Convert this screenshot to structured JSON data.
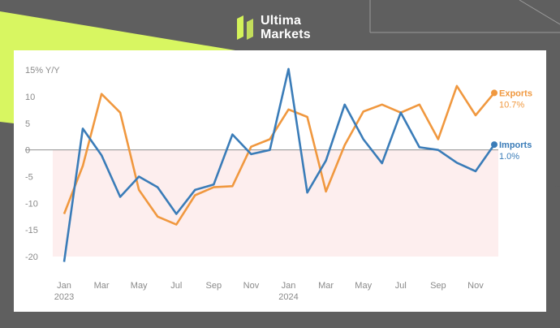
{
  "brand": {
    "line1": "Ultima",
    "line2": "Markets",
    "logo_icon": "ultima-markets-logo-icon",
    "accent": "#d4f35a"
  },
  "chart_data": {
    "type": "line",
    "ylabel": "15% Y/Y",
    "y_ticks": [
      "10",
      "5",
      "0",
      "-5",
      "-10",
      "-15",
      "-20"
    ],
    "ylim": [
      -20,
      15
    ],
    "x_tick_labels": [
      {
        "label": "Jan",
        "sub": "2023"
      },
      {
        "label": "Mar",
        "sub": ""
      },
      {
        "label": "May",
        "sub": ""
      },
      {
        "label": "Jul",
        "sub": ""
      },
      {
        "label": "Sep",
        "sub": ""
      },
      {
        "label": "Nov",
        "sub": ""
      },
      {
        "label": "Jan",
        "sub": "2024"
      },
      {
        "label": "Mar",
        "sub": ""
      },
      {
        "label": "May",
        "sub": ""
      },
      {
        "label": "Jul",
        "sub": ""
      },
      {
        "label": "Sep",
        "sub": ""
      },
      {
        "label": "Nov",
        "sub": ""
      }
    ],
    "x": [
      "2023-01",
      "2023-02",
      "2023-03",
      "2023-04",
      "2023-05",
      "2023-06",
      "2023-07",
      "2023-08",
      "2023-09",
      "2023-10",
      "2023-11",
      "2023-12",
      "2024-01",
      "2024-02",
      "2024-03",
      "2024-04",
      "2024-05",
      "2024-06",
      "2024-07",
      "2024-08",
      "2024-09",
      "2024-10",
      "2024-11",
      "2024-12"
    ],
    "series": [
      {
        "name": "Exports",
        "last_label": "10.7%",
        "color": "#f0983f",
        "values": [
          -12.0,
          -3.0,
          10.5,
          7.0,
          -7.5,
          -12.5,
          -14.0,
          -8.5,
          -7.0,
          -6.8,
          0.6,
          2.0,
          7.6,
          6.2,
          -7.8,
          0.9,
          7.2,
          8.5,
          7.0,
          8.5,
          2.0,
          12.0,
          6.5,
          10.7
        ]
      },
      {
        "name": "Imports",
        "last_label": "1.0%",
        "color": "#3a7cb8",
        "values": [
          -21.0,
          4.0,
          -1.0,
          -8.8,
          -5.0,
          -7.0,
          -12.0,
          -7.5,
          -6.5,
          2.9,
          -0.8,
          0.0,
          15.2,
          -8.0,
          -2.0,
          8.5,
          2.0,
          -2.5,
          7.0,
          0.5,
          0.0,
          -2.4,
          -4.0,
          1.0
        ]
      }
    ],
    "negative_shade": "#fdeeee",
    "grid": false,
    "legend": "right, at series ends"
  }
}
